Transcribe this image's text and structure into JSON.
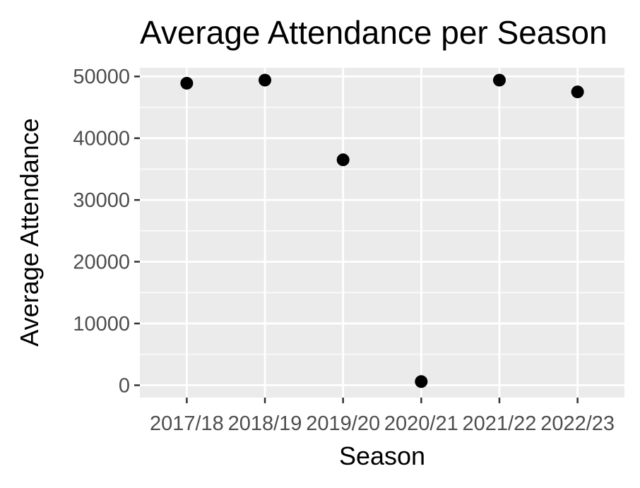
{
  "chart_data": {
    "type": "scatter",
    "title": "Average Attendance per Season",
    "xlabel": "Season",
    "ylabel": "Average Attendance",
    "categories": [
      "2017/18",
      "2018/19",
      "2019/20",
      "2020/21",
      "2021/22",
      "2022/23"
    ],
    "values": [
      48900,
      49400,
      36500,
      600,
      49400,
      47500
    ],
    "ylim": [
      -2000,
      51400
    ],
    "yticks": [
      0,
      10000,
      20000,
      30000,
      40000,
      50000
    ],
    "yticklabels": [
      "0",
      "10000",
      "20000",
      "30000",
      "40000",
      "50000"
    ],
    "grid": true,
    "legend": "none",
    "colors": {
      "panel": "#ebebeb",
      "grid": "#ffffff",
      "point": "#000000",
      "tick": "#333333"
    }
  }
}
